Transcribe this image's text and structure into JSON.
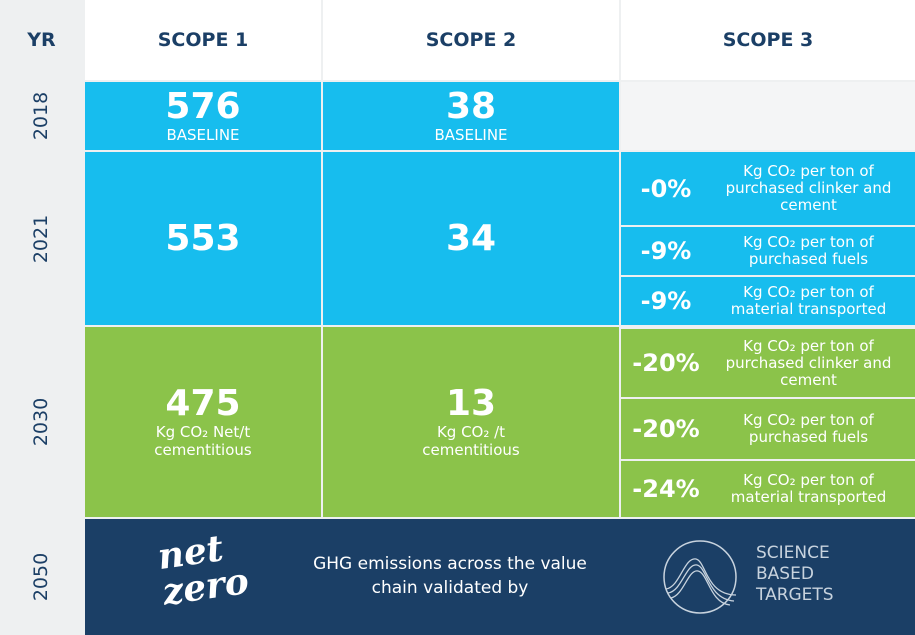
{
  "header": [
    "YR",
    "SCOPE 1",
    "SCOPE 2",
    "SCOPE 3"
  ],
  "rows": [
    {
      "year": "2018",
      "scope1": {
        "value": "576",
        "label": "BASELINE"
      },
      "scope2": {
        "value": "38",
        "label": "BASELINE"
      }
    },
    {
      "year": "2021",
      "scope1": {
        "value": "553"
      },
      "scope2": {
        "value": "34"
      },
      "scope3": [
        {
          "value": "-0%",
          "label": "Kg CO₂ per ton of purchased clinker and cement"
        },
        {
          "value": "-9%",
          "label": "Kg CO₂ per ton of purchased fuels"
        },
        {
          "value": "-9%",
          "label": "Kg CO₂ per ton of material transported"
        }
      ]
    },
    {
      "year": "2030",
      "scope1": {
        "value": "475",
        "label": "Kg CO₂ Net/t cementitious"
      },
      "scope2": {
        "value": "13",
        "label": "Kg CO₂ /t cementitious"
      },
      "scope3": [
        {
          "value": "-20%",
          "label": "Kg CO₂ per ton of purchased clinker and cement"
        },
        {
          "value": "-20%",
          "label": "Kg CO₂ per ton of purchased fuels"
        },
        {
          "value": "-24%",
          "label": "Kg CO₂ per ton of material transported"
        }
      ]
    },
    {
      "year": "2050",
      "logo": [
        "net",
        "zero"
      ],
      "description": "GHG emissions across the value chain validated by",
      "sbt": [
        "SCIENCE",
        "BASED",
        "TARGETS"
      ]
    }
  ]
}
